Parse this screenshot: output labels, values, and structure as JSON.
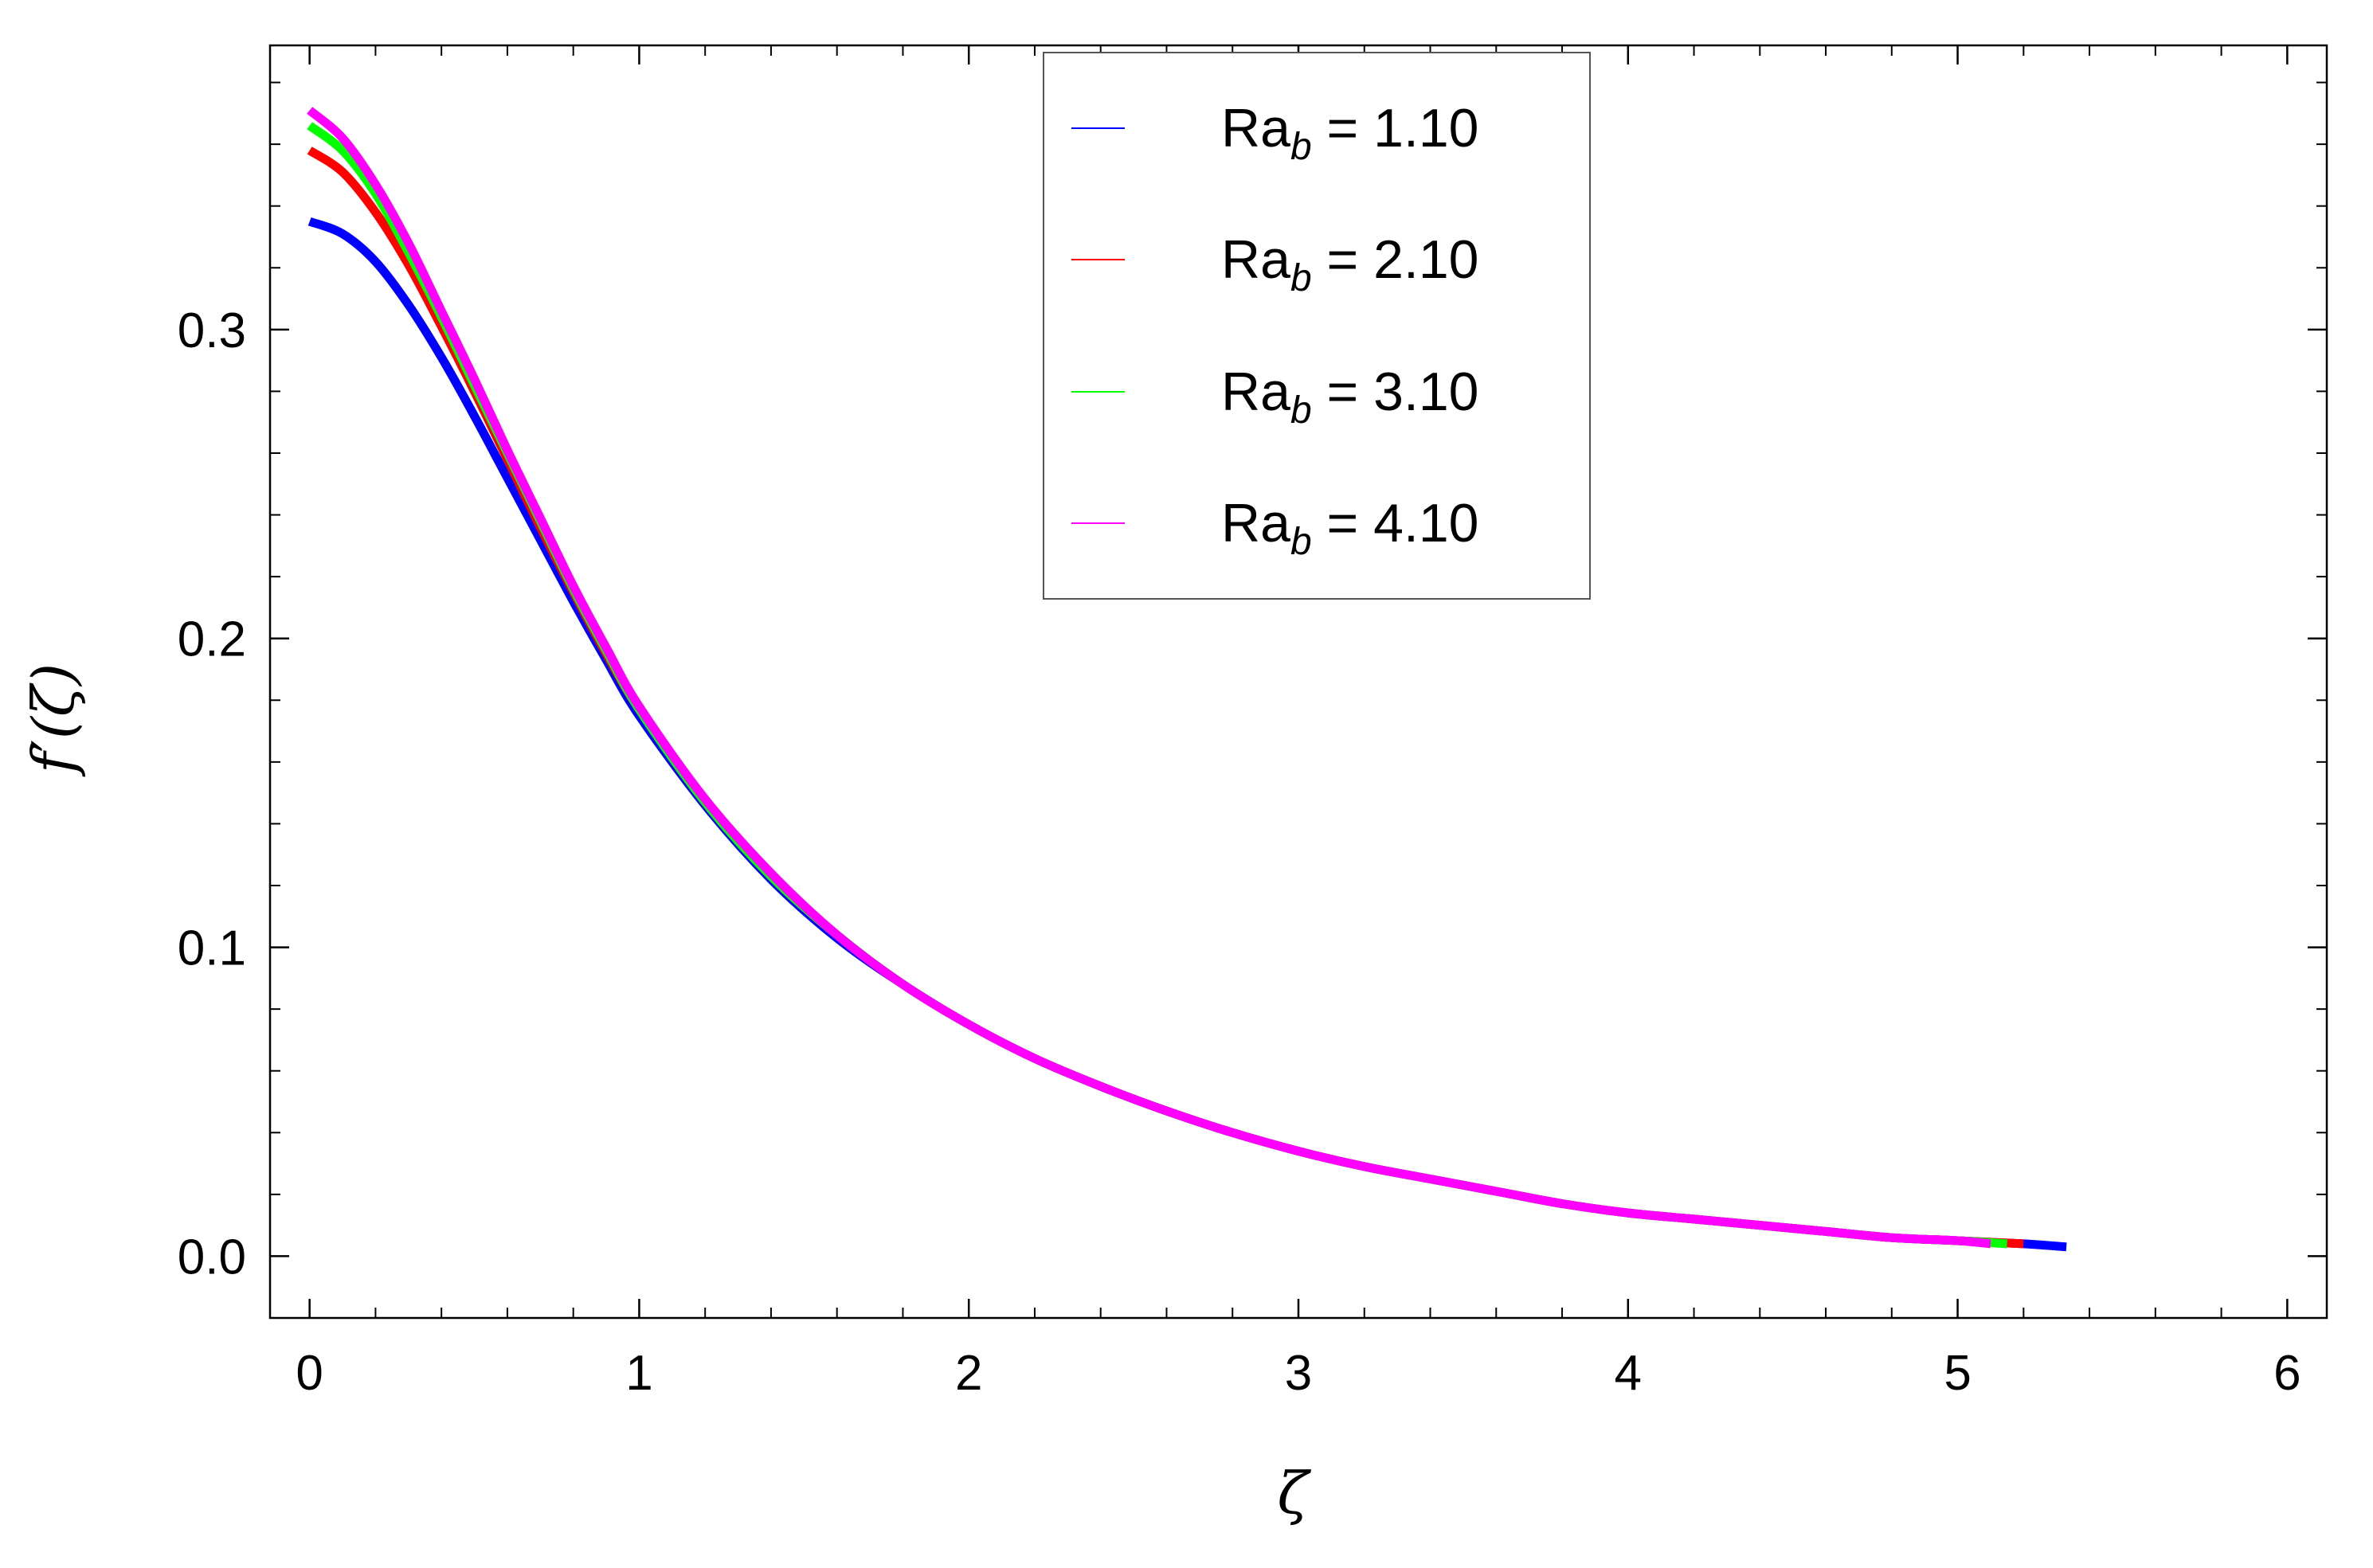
{
  "chart_data": {
    "type": "line",
    "title": "",
    "xlabel": "ζ",
    "ylabel_main": "f",
    "ylabel_prime": "′",
    "ylabel_arg": "(ζ)",
    "xlim": [
      -0.12,
      6.12
    ],
    "ylim": [
      -0.02,
      0.392
    ],
    "xticks": [
      0,
      1,
      2,
      3,
      4,
      5,
      6
    ],
    "xtick_labels": [
      "0",
      "1",
      "2",
      "3",
      "4",
      "5",
      "6"
    ],
    "yticks": [
      0.0,
      0.1,
      0.2,
      0.3
    ],
    "ytick_labels": [
      "0.0",
      "0.1",
      "0.2",
      "0.3"
    ],
    "x_minor_step": 0.2,
    "y_minor_step": 0.02,
    "grid": false,
    "legend_position": "top-center",
    "legend_var": "Ra",
    "legend_sub": "b",
    "series": [
      {
        "name": "Ra_b = 1.10",
        "label_suffix": " = 1.10",
        "color": "#0000ff",
        "x": [
          0.0,
          0.1,
          0.2,
          0.3,
          0.4,
          0.5,
          0.6,
          0.7,
          0.8,
          0.9,
          1.0,
          1.2,
          1.4,
          1.6,
          1.8,
          2.0,
          2.2,
          2.4,
          2.6,
          2.8,
          3.0,
          3.2,
          3.4,
          3.6,
          3.8,
          4.0,
          4.2,
          4.4,
          4.6,
          4.8,
          5.0,
          5.2,
          5.33
        ],
        "y": [
          0.335,
          0.331,
          0.322,
          0.308,
          0.291,
          0.272,
          0.252,
          0.232,
          0.212,
          0.193,
          0.175,
          0.146,
          0.122,
          0.103,
          0.088,
          0.075,
          0.064,
          0.055,
          0.047,
          0.04,
          0.034,
          0.029,
          0.025,
          0.021,
          0.017,
          0.014,
          0.012,
          0.01,
          0.008,
          0.006,
          0.005,
          0.004,
          0.003
        ]
      },
      {
        "name": "Ra_b = 2.10",
        "label_suffix": " = 2.10",
        "color": "#ff0000",
        "x": [
          0.0,
          0.1,
          0.2,
          0.3,
          0.4,
          0.5,
          0.6,
          0.7,
          0.8,
          0.9,
          1.0,
          1.2,
          1.4,
          1.6,
          1.8,
          2.0,
          2.2,
          2.4,
          2.6,
          2.8,
          3.0,
          3.2,
          3.4,
          3.6,
          3.8,
          4.0,
          4.2,
          4.4,
          4.6,
          4.8,
          5.0,
          5.2
        ],
        "y": [
          0.358,
          0.351,
          0.338,
          0.321,
          0.301,
          0.28,
          0.258,
          0.236,
          0.215,
          0.195,
          0.177,
          0.147,
          0.123,
          0.104,
          0.088,
          0.075,
          0.064,
          0.055,
          0.047,
          0.04,
          0.034,
          0.029,
          0.025,
          0.021,
          0.017,
          0.014,
          0.012,
          0.01,
          0.008,
          0.006,
          0.005,
          0.004
        ]
      },
      {
        "name": "Ra_b = 3.10",
        "label_suffix": " = 3.10",
        "color": "#00ff00",
        "x": [
          0.0,
          0.1,
          0.2,
          0.3,
          0.4,
          0.5,
          0.6,
          0.7,
          0.8,
          0.9,
          1.0,
          1.2,
          1.4,
          1.6,
          1.8,
          2.0,
          2.2,
          2.4,
          2.6,
          2.8,
          3.0,
          3.2,
          3.4,
          3.6,
          3.8,
          4.0,
          4.2,
          4.4,
          4.6,
          4.8,
          5.0,
          5.15
        ],
        "y": [
          0.366,
          0.358,
          0.344,
          0.325,
          0.304,
          0.282,
          0.26,
          0.238,
          0.216,
          0.196,
          0.177,
          0.147,
          0.123,
          0.104,
          0.088,
          0.075,
          0.064,
          0.055,
          0.047,
          0.04,
          0.034,
          0.029,
          0.025,
          0.021,
          0.017,
          0.014,
          0.012,
          0.01,
          0.008,
          0.006,
          0.005,
          0.004
        ]
      },
      {
        "name": "Ra_b = 4.10",
        "label_suffix": " = 4.10",
        "color": "#ff00ff",
        "x": [
          0.0,
          0.1,
          0.2,
          0.3,
          0.4,
          0.5,
          0.6,
          0.7,
          0.8,
          0.9,
          1.0,
          1.2,
          1.4,
          1.6,
          1.8,
          2.0,
          2.2,
          2.4,
          2.6,
          2.8,
          3.0,
          3.2,
          3.4,
          3.6,
          3.8,
          4.0,
          4.2,
          4.4,
          4.6,
          4.8,
          5.0,
          5.1
        ],
        "y": [
          0.371,
          0.362,
          0.347,
          0.328,
          0.306,
          0.284,
          0.261,
          0.239,
          0.217,
          0.197,
          0.178,
          0.148,
          0.124,
          0.104,
          0.088,
          0.075,
          0.064,
          0.055,
          0.047,
          0.04,
          0.034,
          0.029,
          0.025,
          0.021,
          0.017,
          0.014,
          0.012,
          0.01,
          0.008,
          0.006,
          0.005,
          0.004
        ]
      }
    ]
  }
}
